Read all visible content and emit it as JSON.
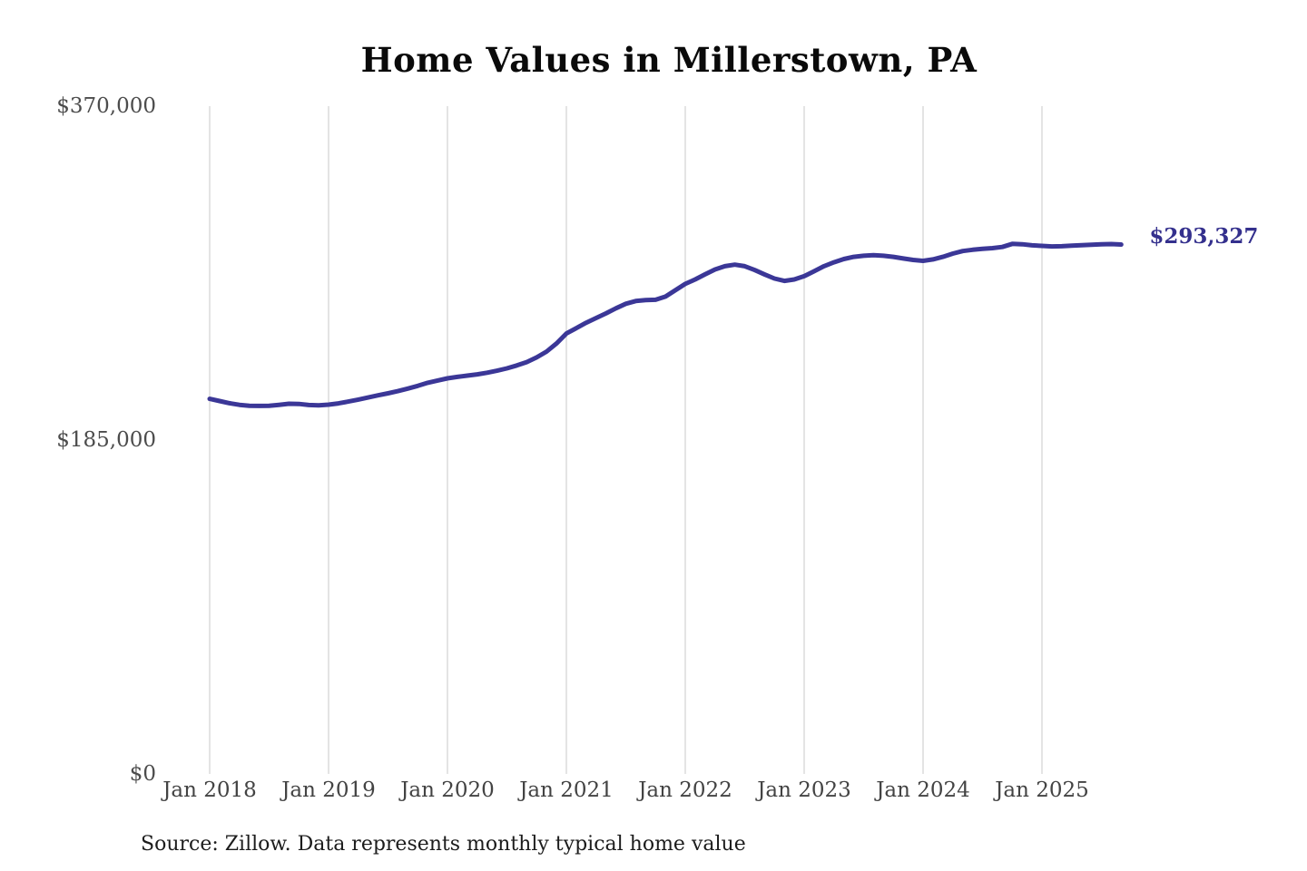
{
  "chart_data": {
    "type": "line",
    "title": "Home Values in Millerstown, PA",
    "source_note": "Source: Zillow. Data represents monthly typical home value",
    "grid": "vertical-only",
    "legend": "none",
    "ylim": [
      0,
      370000
    ],
    "y_ticks": [
      {
        "label": "$0",
        "value": 0
      },
      {
        "label": "$185,000",
        "value": 185000
      },
      {
        "label": "$370,000",
        "value": 370000
      }
    ],
    "x_ticks": [
      "Jan 2018",
      "Jan 2019",
      "Jan 2020",
      "Jan 2021",
      "Jan 2022",
      "Jan 2023",
      "Jan 2024",
      "Jan 2025"
    ],
    "end_label": "$293,327",
    "end_value": 293327,
    "series": [
      {
        "name": "Monthly typical home value",
        "color": "#3b3797",
        "start_month": "Jan 2018",
        "interval": "monthly",
        "values": [
          207800,
          206600,
          205400,
          204500,
          204000,
          203900,
          204000,
          204500,
          205100,
          205000,
          204400,
          204200,
          204600,
          205300,
          206300,
          207400,
          208600,
          209800,
          210900,
          212100,
          213500,
          215000,
          216700,
          218000,
          219200,
          220000,
          220700,
          221400,
          222300,
          223400,
          224700,
          226300,
          228200,
          230800,
          234000,
          238500,
          244000,
          247000,
          250000,
          252600,
          255200,
          258000,
          260500,
          262000,
          262500,
          262700,
          264500,
          268000,
          271500,
          274000,
          276800,
          279500,
          281300,
          282200,
          281300,
          279200,
          276800,
          274500,
          273200,
          274000,
          275800,
          278500,
          281300,
          283500,
          285300,
          286500,
          287100,
          287400,
          287100,
          286500,
          285600,
          284800,
          284300,
          285100,
          286500,
          288300,
          289700,
          290400,
          290900,
          291300,
          292000,
          293700,
          293500,
          292900,
          292600,
          292300,
          292400,
          292700,
          293000,
          293200,
          293500,
          293600,
          293327
        ]
      }
    ]
  },
  "colors": {
    "line": "#3b3797",
    "end_label": "#34308d",
    "gridline": "#c9c9c9",
    "axis_text": "#4c4c4c",
    "title_text": "#0a0a0a",
    "background": "#ffffff"
  }
}
